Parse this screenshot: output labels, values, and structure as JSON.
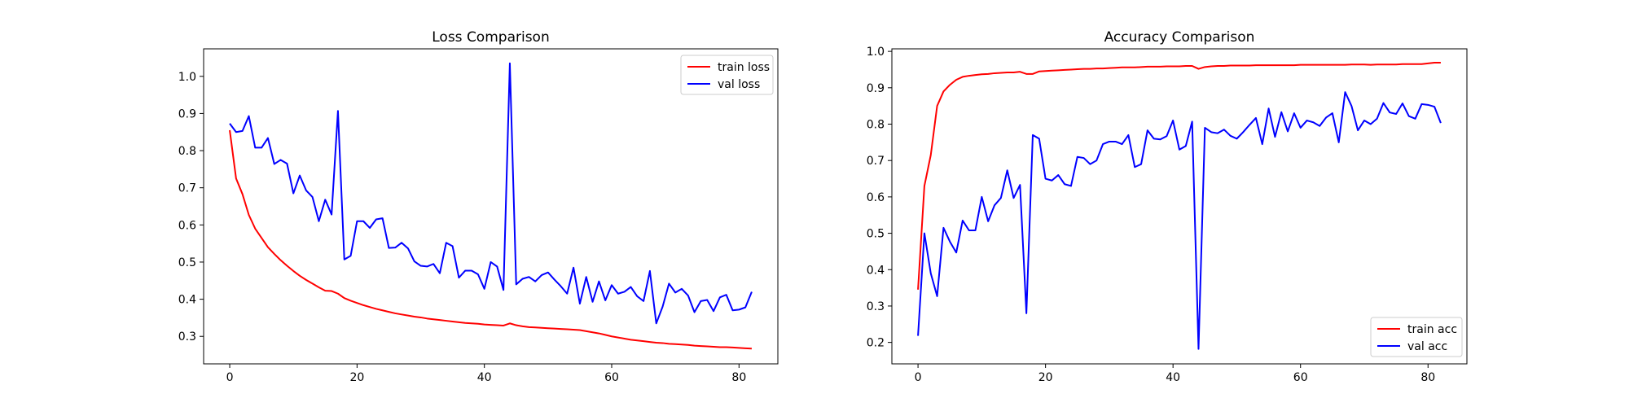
{
  "chart_data": [
    {
      "type": "line",
      "title": "Loss Comparison",
      "xlabel": "",
      "ylabel": "",
      "xlim": [
        -4.1,
        86.1
      ],
      "ylim": [
        0.226,
        1.074
      ],
      "xticks": [
        0,
        20,
        40,
        60,
        80
      ],
      "yticks": [
        0.3,
        0.4,
        0.5,
        0.6,
        0.7,
        0.8,
        0.9,
        1.0
      ],
      "grid": false,
      "legend_position": "top-right",
      "series": [
        {
          "name": "train loss",
          "color": "#ff0000",
          "x": [
            0,
            1,
            2,
            3,
            4,
            5,
            6,
            7,
            8,
            9,
            10,
            11,
            12,
            13,
            14,
            15,
            16,
            17,
            18,
            19,
            20,
            21,
            22,
            23,
            24,
            25,
            26,
            27,
            28,
            29,
            30,
            31,
            32,
            33,
            34,
            35,
            36,
            37,
            38,
            39,
            40,
            41,
            42,
            43,
            44,
            45,
            46,
            47,
            48,
            49,
            50,
            51,
            52,
            53,
            54,
            55,
            56,
            57,
            58,
            59,
            60,
            61,
            62,
            63,
            64,
            65,
            66,
            67,
            68,
            69,
            70,
            71,
            72,
            73,
            74,
            75,
            76,
            77,
            78,
            79,
            80,
            81,
            82
          ],
          "values": [
            0.855,
            0.725,
            0.683,
            0.627,
            0.59,
            0.565,
            0.54,
            0.522,
            0.505,
            0.49,
            0.476,
            0.463,
            0.452,
            0.442,
            0.432,
            0.423,
            0.422,
            0.415,
            0.403,
            0.396,
            0.39,
            0.384,
            0.379,
            0.374,
            0.37,
            0.366,
            0.362,
            0.359,
            0.356,
            0.353,
            0.351,
            0.348,
            0.346,
            0.344,
            0.342,
            0.34,
            0.338,
            0.336,
            0.335,
            0.334,
            0.332,
            0.331,
            0.33,
            0.329,
            0.335,
            0.33,
            0.327,
            0.325,
            0.324,
            0.323,
            0.322,
            0.321,
            0.32,
            0.319,
            0.318,
            0.317,
            0.314,
            0.311,
            0.308,
            0.304,
            0.3,
            0.297,
            0.294,
            0.291,
            0.289,
            0.287,
            0.285,
            0.283,
            0.282,
            0.28,
            0.279,
            0.278,
            0.277,
            0.275,
            0.274,
            0.273,
            0.272,
            0.271,
            0.271,
            0.27,
            0.269,
            0.268,
            0.267
          ]
        },
        {
          "name": "val loss",
          "color": "#0000ff",
          "x": [
            0,
            1,
            2,
            3,
            4,
            5,
            6,
            7,
            8,
            9,
            10,
            11,
            12,
            13,
            14,
            15,
            16,
            17,
            18,
            19,
            20,
            21,
            22,
            23,
            24,
            25,
            26,
            27,
            28,
            29,
            30,
            31,
            32,
            33,
            34,
            35,
            36,
            37,
            38,
            39,
            40,
            41,
            42,
            43,
            44,
            45,
            46,
            47,
            48,
            49,
            50,
            51,
            52,
            53,
            54,
            55,
            56,
            57,
            58,
            59,
            60,
            61,
            62,
            63,
            64,
            65,
            66,
            67,
            68,
            69,
            70,
            71,
            72,
            73,
            74,
            75,
            76,
            77,
            78,
            79,
            80,
            81,
            82
          ],
          "values": [
            0.873,
            0.85,
            0.853,
            0.893,
            0.808,
            0.808,
            0.834,
            0.764,
            0.775,
            0.765,
            0.685,
            0.733,
            0.693,
            0.675,
            0.61,
            0.668,
            0.628,
            0.907,
            0.507,
            0.517,
            0.61,
            0.61,
            0.592,
            0.615,
            0.618,
            0.538,
            0.539,
            0.552,
            0.537,
            0.502,
            0.49,
            0.488,
            0.495,
            0.47,
            0.552,
            0.543,
            0.458,
            0.477,
            0.477,
            0.467,
            0.428,
            0.5,
            0.488,
            0.425,
            1.035,
            0.44,
            0.455,
            0.46,
            0.448,
            0.465,
            0.472,
            0.453,
            0.435,
            0.415,
            0.485,
            0.388,
            0.46,
            0.393,
            0.448,
            0.397,
            0.438,
            0.415,
            0.42,
            0.433,
            0.408,
            0.395,
            0.476,
            0.335,
            0.38,
            0.442,
            0.418,
            0.428,
            0.41,
            0.365,
            0.395,
            0.398,
            0.368,
            0.405,
            0.412,
            0.37,
            0.372,
            0.378,
            0.42
          ]
        }
      ]
    },
    {
      "type": "line",
      "title": "Accuracy Comparison",
      "xlabel": "",
      "ylabel": "",
      "xlim": [
        -4.1,
        86.1
      ],
      "ylim": [
        0.141,
        1.007
      ],
      "xticks": [
        0,
        20,
        40,
        60,
        80
      ],
      "yticks": [
        0.2,
        0.3,
        0.4,
        0.5,
        0.6,
        0.7,
        0.8,
        0.9,
        1.0
      ],
      "grid": false,
      "legend_position": "bottom-right",
      "series": [
        {
          "name": "train acc",
          "color": "#ff0000",
          "x": [
            0,
            1,
            2,
            3,
            4,
            5,
            6,
            7,
            8,
            9,
            10,
            11,
            12,
            13,
            14,
            15,
            16,
            17,
            18,
            19,
            20,
            21,
            22,
            23,
            24,
            25,
            26,
            27,
            28,
            29,
            30,
            31,
            32,
            33,
            34,
            35,
            36,
            37,
            38,
            39,
            40,
            41,
            42,
            43,
            44,
            45,
            46,
            47,
            48,
            49,
            50,
            51,
            52,
            53,
            54,
            55,
            56,
            57,
            58,
            59,
            60,
            61,
            62,
            63,
            64,
            65,
            66,
            67,
            68,
            69,
            70,
            71,
            72,
            73,
            74,
            75,
            76,
            77,
            78,
            79,
            80,
            81,
            82
          ],
          "values": [
            0.345,
            0.63,
            0.715,
            0.85,
            0.89,
            0.908,
            0.922,
            0.93,
            0.933,
            0.935,
            0.937,
            0.938,
            0.94,
            0.941,
            0.942,
            0.942,
            0.944,
            0.938,
            0.938,
            0.945,
            0.946,
            0.947,
            0.948,
            0.949,
            0.95,
            0.951,
            0.952,
            0.952,
            0.953,
            0.953,
            0.954,
            0.955,
            0.956,
            0.956,
            0.956,
            0.957,
            0.958,
            0.958,
            0.958,
            0.959,
            0.959,
            0.959,
            0.96,
            0.96,
            0.952,
            0.957,
            0.959,
            0.96,
            0.96,
            0.961,
            0.961,
            0.961,
            0.961,
            0.962,
            0.962,
            0.962,
            0.962,
            0.962,
            0.962,
            0.962,
            0.963,
            0.963,
            0.963,
            0.963,
            0.963,
            0.963,
            0.963,
            0.963,
            0.964,
            0.964,
            0.964,
            0.963,
            0.964,
            0.964,
            0.964,
            0.964,
            0.965,
            0.965,
            0.965,
            0.965,
            0.967,
            0.969,
            0.969
          ]
        },
        {
          "name": "val acc",
          "color": "#0000ff",
          "x": [
            0,
            1,
            2,
            3,
            4,
            5,
            6,
            7,
            8,
            9,
            10,
            11,
            12,
            13,
            14,
            15,
            16,
            17,
            18,
            19,
            20,
            21,
            22,
            23,
            24,
            25,
            26,
            27,
            28,
            29,
            30,
            31,
            32,
            33,
            34,
            35,
            36,
            37,
            38,
            39,
            40,
            41,
            42,
            43,
            44,
            45,
            46,
            47,
            48,
            49,
            50,
            51,
            52,
            53,
            54,
            55,
            56,
            57,
            58,
            59,
            60,
            61,
            62,
            63,
            64,
            65,
            66,
            67,
            68,
            69,
            70,
            71,
            72,
            73,
            74,
            75,
            76,
            77,
            78,
            79,
            80,
            81,
            82
          ],
          "values": [
            0.218,
            0.5,
            0.39,
            0.327,
            0.515,
            0.477,
            0.447,
            0.535,
            0.508,
            0.508,
            0.6,
            0.533,
            0.577,
            0.597,
            0.673,
            0.597,
            0.633,
            0.28,
            0.77,
            0.76,
            0.65,
            0.645,
            0.66,
            0.635,
            0.63,
            0.71,
            0.707,
            0.69,
            0.7,
            0.745,
            0.752,
            0.752,
            0.745,
            0.77,
            0.682,
            0.69,
            0.783,
            0.76,
            0.758,
            0.767,
            0.81,
            0.73,
            0.74,
            0.807,
            0.182,
            0.79,
            0.778,
            0.775,
            0.785,
            0.768,
            0.76,
            0.778,
            0.798,
            0.817,
            0.745,
            0.843,
            0.765,
            0.833,
            0.78,
            0.83,
            0.79,
            0.81,
            0.805,
            0.795,
            0.818,
            0.83,
            0.75,
            0.888,
            0.85,
            0.783,
            0.81,
            0.8,
            0.815,
            0.858,
            0.832,
            0.828,
            0.857,
            0.822,
            0.815,
            0.855,
            0.853,
            0.848,
            0.803
          ]
        }
      ]
    }
  ]
}
